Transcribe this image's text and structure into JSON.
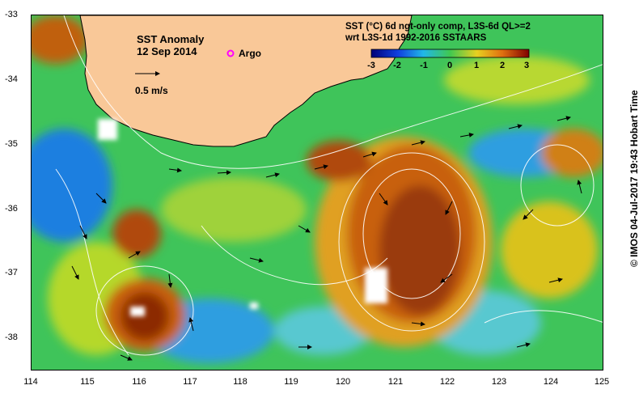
{
  "map": {
    "title": "SST Anomaly",
    "date": "12 Sep 2014",
    "argo_label": "Argo",
    "velocity_scale_label": "0.5 m/s",
    "product_line1": "SST (°C) 6d ngt-only comp, L3S-6d QL>=2",
    "product_line2": "wrt L3S-1d 1992-2016 SSTAARS",
    "credit": "© IMOS 04-Jul-2017 19:43 Hobart Time",
    "lon_ticks": [
      "114",
      "115",
      "116",
      "117",
      "118",
      "119",
      "120",
      "121",
      "122",
      "123",
      "124",
      "125"
    ],
    "lat_ticks": [
      "-33",
      "-34",
      "-35",
      "-36",
      "-37",
      "-38"
    ],
    "colorbar_ticks": [
      "-3",
      "-2",
      "-1",
      "0",
      "1",
      "2",
      "3"
    ],
    "colorbar_range": [
      -3,
      3
    ],
    "extent": {
      "lon": [
        114,
        125
      ],
      "lat": [
        -38.5,
        -33
      ]
    },
    "colors": {
      "land": "#f9c898",
      "ocean_base": "#3fc45a",
      "argo": "#ff00ff"
    }
  }
}
